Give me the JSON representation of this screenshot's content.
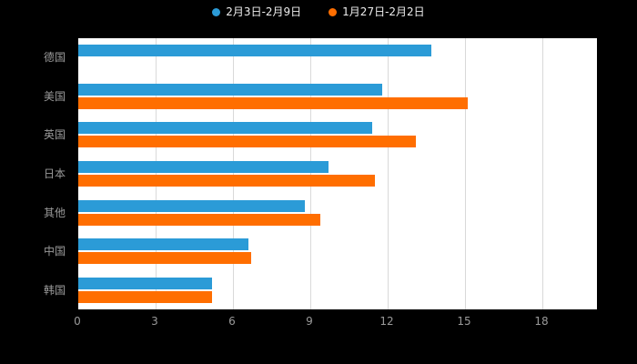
{
  "legend": {
    "items": [
      {
        "label": "2月3日-2月9日",
        "color": "#2B9BD7"
      },
      {
        "label": "1月27日-2月2日",
        "color": "#FF6E00"
      }
    ]
  },
  "chart_data": {
    "type": "bar",
    "orientation": "horizontal",
    "title": "",
    "xlabel": "",
    "ylabel": "",
    "categories": [
      "德国",
      "美国",
      "英国",
      "日本",
      "其他",
      "中国",
      "韩国"
    ],
    "series": [
      {
        "name": "2月3日-2月9日",
        "color": "#2B9BD7",
        "values": [
          13.7,
          11.8,
          11.4,
          9.7,
          8.8,
          6.6,
          5.2
        ]
      },
      {
        "name": "1月27日-2月2日",
        "color": "#FF6E00",
        "values": [
          0,
          15.1,
          13.1,
          11.5,
          9.4,
          6.7,
          5.2
        ]
      }
    ],
    "xlim": [
      0,
      18
    ],
    "xticks": [
      0,
      3,
      6,
      9,
      12,
      15,
      18
    ],
    "grid": true,
    "legend_position": "top",
    "plot_bg": "#ffffff",
    "page_bg": "#000000",
    "axis_label_color": "#9a9a9a",
    "gridline_color": "#d9d9d9"
  }
}
